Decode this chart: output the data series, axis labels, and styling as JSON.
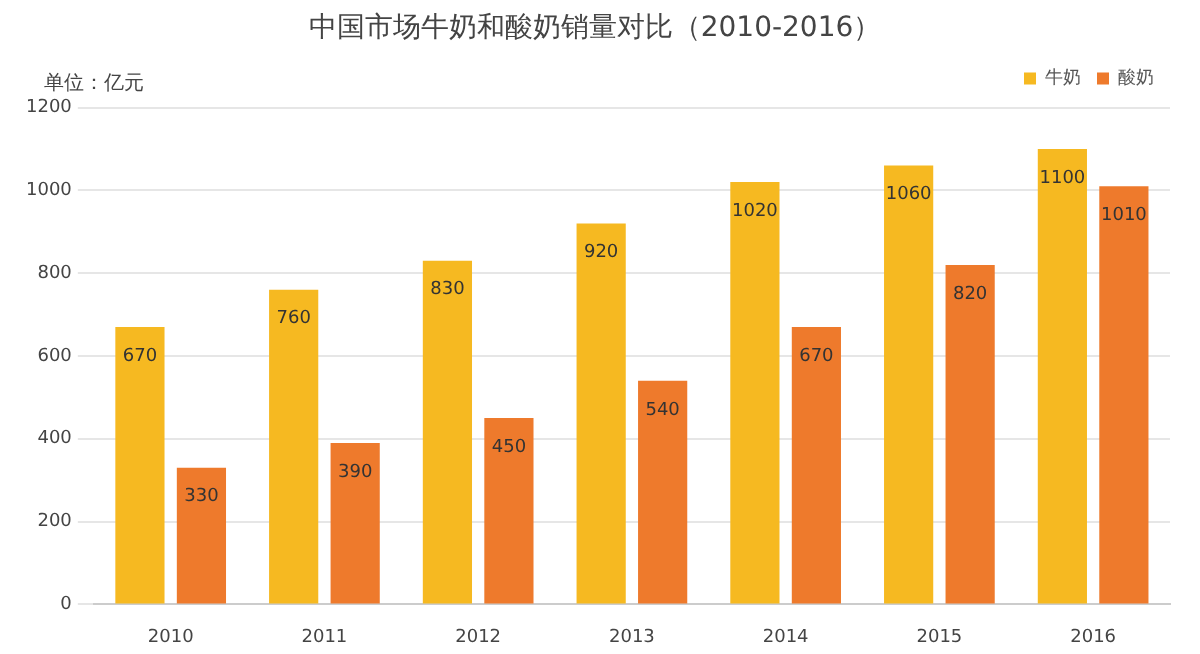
{
  "chart_data": {
    "type": "bar",
    "title": "中国市场牛奶和酸奶销量对比（2010-2016）",
    "ylabel": "单位：亿元",
    "categories": [
      "2010",
      "2011",
      "2012",
      "2013",
      "2014",
      "2015",
      "2016"
    ],
    "series": [
      {
        "name": "牛奶",
        "color": "#f6b921",
        "values": [
          670,
          760,
          830,
          920,
          1020,
          1060,
          1100
        ]
      },
      {
        "name": "酸奶",
        "color": "#ee7a2c",
        "values": [
          330,
          390,
          450,
          540,
          670,
          820,
          1010
        ]
      }
    ],
    "ylim": [
      0,
      1200
    ],
    "yticks": [
      0,
      200,
      400,
      600,
      800,
      1000,
      1200
    ],
    "grid": "y",
    "legend": "top right",
    "data_labels": true
  }
}
